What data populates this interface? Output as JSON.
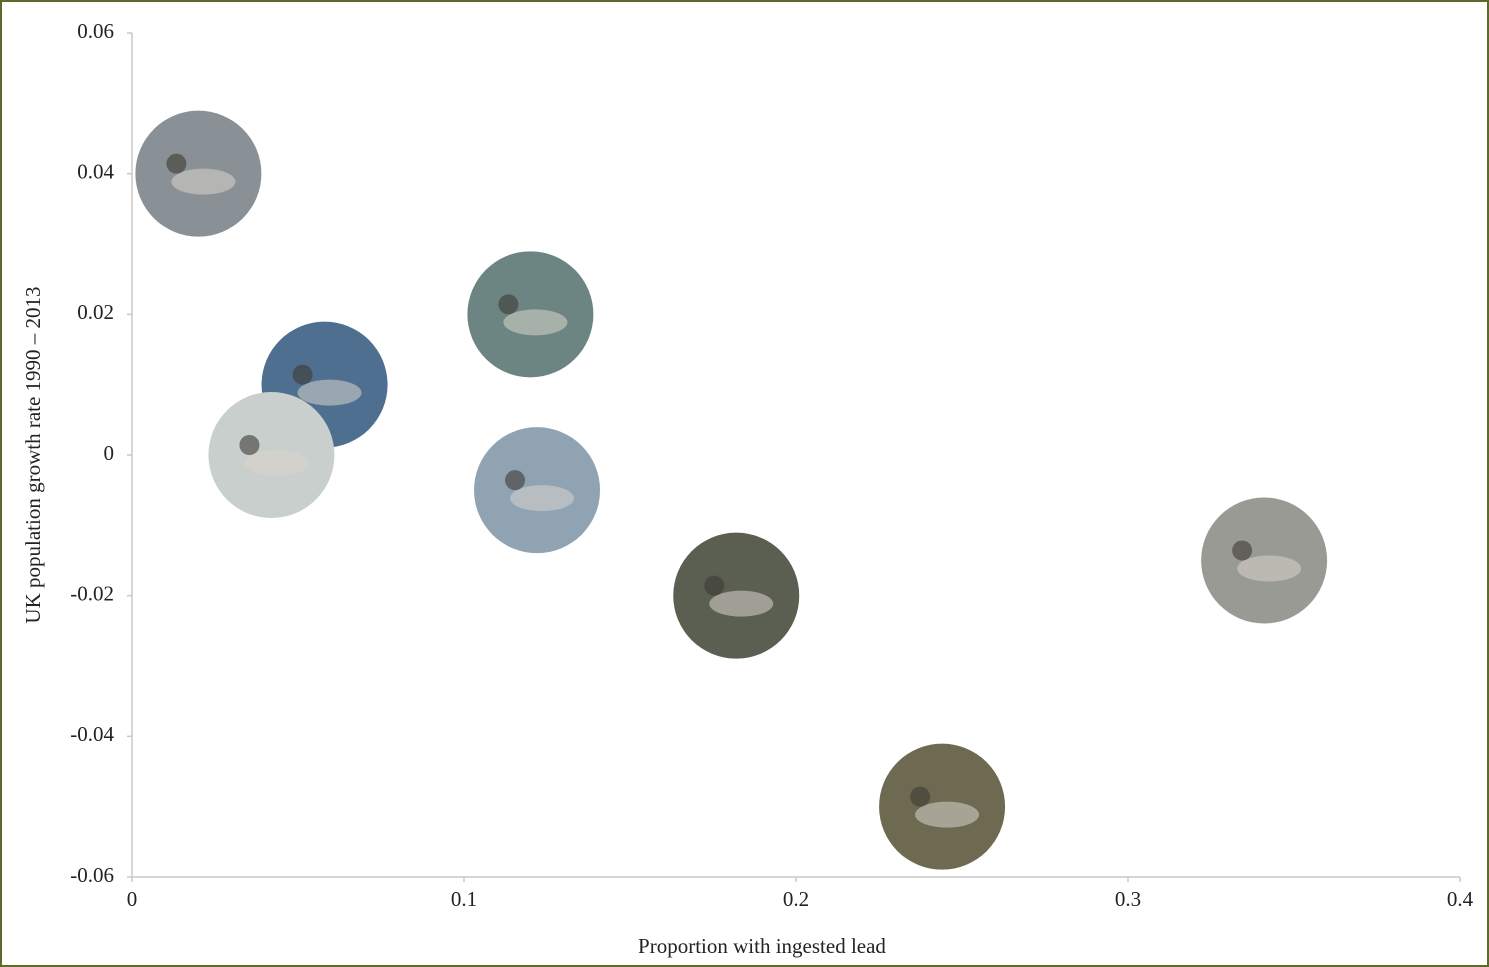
{
  "chart_data": {
    "type": "scatter",
    "x_label": "Proportion with ingested lead",
    "y_label": "UK population growth rate 1990 – 2013",
    "x": [
      0.02,
      0.058,
      0.042,
      0.12,
      0.122,
      0.182,
      0.244,
      0.341
    ],
    "values": [
      0.04,
      0.01,
      0,
      0.02,
      -0.005,
      -0.02,
      -0.05,
      -0.015
    ],
    "colors": [
      "#8a9196",
      "#4e6f8f",
      "#c9cfcc",
      "#6d8582",
      "#8fa3b3",
      "#5a5f52",
      "#6e6a52",
      "#9a9a94"
    ],
    "xlim": [
      0,
      0.4
    ],
    "xticks": [
      0,
      0.1,
      0.2,
      0.3,
      0.4
    ],
    "ylim": [
      -0.06,
      0.06
    ],
    "yticks": [
      -0.06,
      -0.04,
      -0.02,
      0,
      0.02,
      0.04,
      0.06
    ],
    "grid": false
  }
}
